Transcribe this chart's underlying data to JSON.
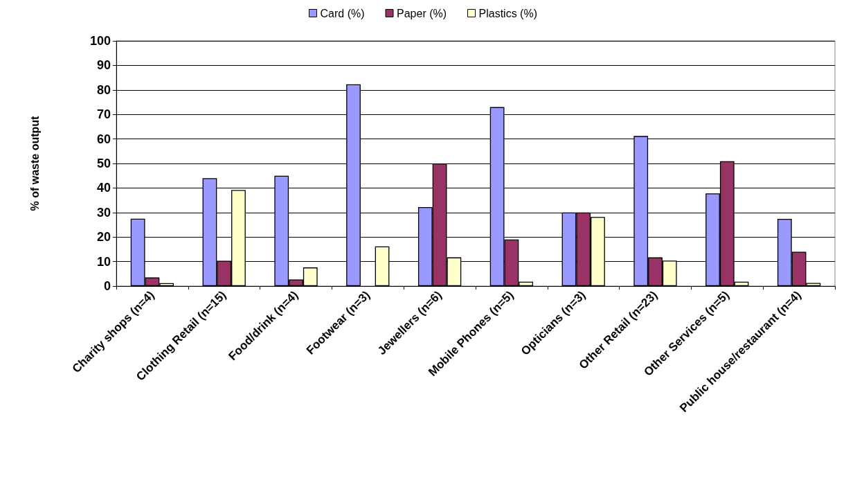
{
  "chart_data": {
    "type": "bar",
    "ylabel": "% of waste output",
    "categories": [
      "Charity shops (n=4)",
      "Clothing Retail (n=15)",
      "Food/drink (n=4)",
      "Footwear (n=3)",
      "Jewellers (n=6)",
      "Mobile Phones (n=5)",
      "Opticians (n=3)",
      "Other Retail (n=23)",
      "Other Services (n=5)",
      "Public house/restaurant (n=4)"
    ],
    "series": [
      {
        "name": "Card (%)",
        "color": "#9999ff",
        "values": [
          27.5,
          44,
          45,
          82.3,
          32.2,
          73,
          30,
          61.2,
          37.8,
          27.4
        ]
      },
      {
        "name": "Paper (%)",
        "color": "#993366",
        "values": [
          3.5,
          10.3,
          2.7,
          null,
          50,
          19,
          30,
          11.7,
          50.9,
          14
        ]
      },
      {
        "name": "Plastics (%)",
        "color": "#ffffcc",
        "values": [
          1.2,
          39.2,
          7.6,
          16.2,
          11.7,
          1.8,
          28.2,
          10.4,
          1.8,
          1.3
        ]
      }
    ],
    "ylim": [
      0,
      100
    ],
    "yticks": [
      0,
      10,
      20,
      30,
      40,
      50,
      60,
      70,
      80,
      90,
      100
    ],
    "grid": "y",
    "legend": "top"
  }
}
